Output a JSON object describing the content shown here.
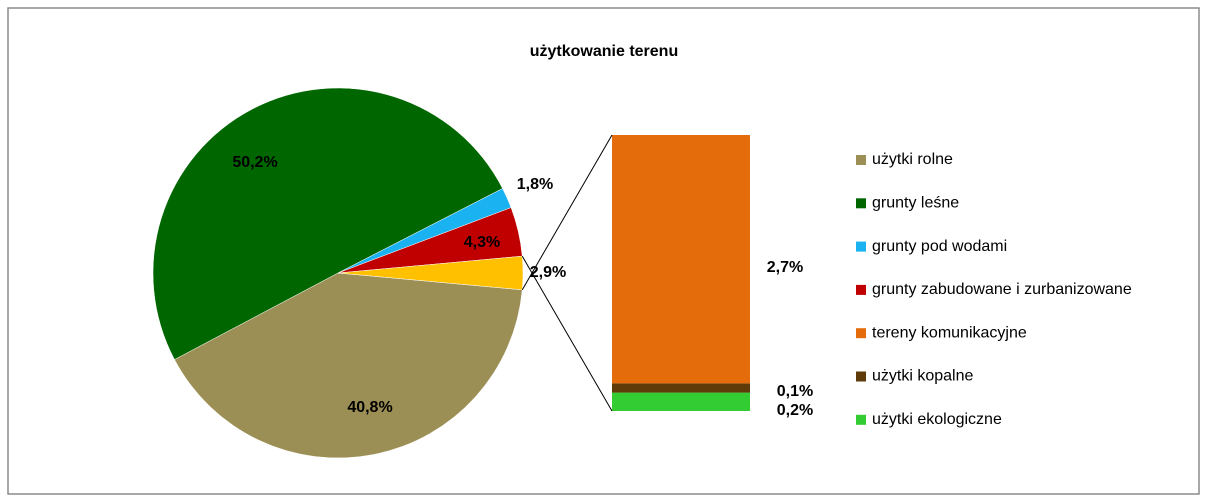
{
  "chart_data": {
    "type": "pie-of-bar",
    "title": "użytkowanie terenu",
    "slices": [
      {
        "name": "użytki rolne",
        "color": "#9c8f56",
        "value": 40.8,
        "value_label": "40,8%"
      },
      {
        "name": "grunty leśne",
        "color": "#006600",
        "value": 50.2,
        "value_label": "50,2%"
      },
      {
        "name": "grunty pod wodami",
        "color": "#1ab2f0",
        "value": 1.8,
        "value_label": "1,8%"
      },
      {
        "name": "grunty zabudowane i zurbanizowane",
        "color": "#c00000",
        "value": 4.3,
        "value_label": "4,3%"
      }
    ],
    "other": {
      "color": "#ffc000",
      "value": 2.9,
      "value_label": "2,9%"
    },
    "bar_slices": [
      {
        "name": "tereny komunikacyjne",
        "color": "#e46c0a",
        "value": 2.7,
        "value_label": "2,7%"
      },
      {
        "name": "użytki kopalne",
        "color": "#5f3b0a",
        "value": 0.1,
        "value_label": "0,1%"
      },
      {
        "name": "użytki ekologiczne",
        "color": "#33cc33",
        "value": 0.2,
        "value_label": "0,2%"
      }
    ]
  }
}
